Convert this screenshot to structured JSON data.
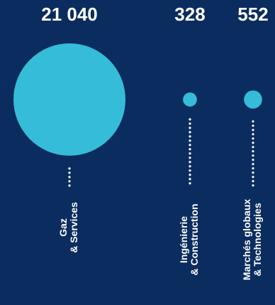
{
  "chart_data": {
    "type": "bubble",
    "title": "",
    "categories": [
      [
        "Gaz",
        "& Services"
      ],
      [
        "Ingénierie",
        "& Construction"
      ],
      [
        "Marchés globaux",
        "& Technologies"
      ]
    ],
    "values": [
      21040,
      328,
      552
    ],
    "value_labels": [
      "21 040",
      "328",
      "552"
    ],
    "colors": {
      "background": "#0b2c5e",
      "bubble": "#35bcd8",
      "dots": "#ffffff",
      "text": "#ffffff"
    }
  }
}
